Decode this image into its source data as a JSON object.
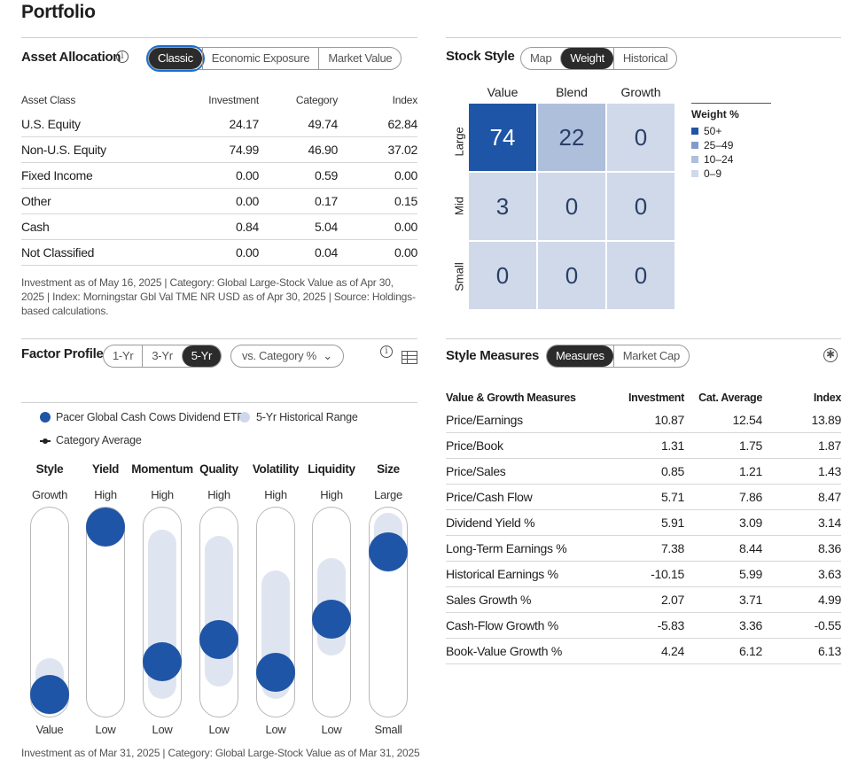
{
  "page_title": "Portfolio",
  "asset_allocation": {
    "title": "Asset Allocation",
    "tabs": [
      "Classic",
      "Economic Exposure",
      "Market Value"
    ],
    "active_tab": "Classic",
    "columns": [
      "Asset Class",
      "Investment",
      "Category",
      "Index"
    ],
    "rows": [
      {
        "name": "U.S. Equity",
        "investment": "24.17",
        "category": "49.74",
        "index": "62.84"
      },
      {
        "name": "Non-U.S. Equity",
        "investment": "74.99",
        "category": "46.90",
        "index": "37.02"
      },
      {
        "name": "Fixed Income",
        "investment": "0.00",
        "category": "0.59",
        "index": "0.00"
      },
      {
        "name": "Other",
        "investment": "0.00",
        "category": "0.17",
        "index": "0.15"
      },
      {
        "name": "Cash",
        "investment": "0.84",
        "category": "5.04",
        "index": "0.00"
      },
      {
        "name": "Not Classified",
        "investment": "0.00",
        "category": "0.04",
        "index": "0.00"
      }
    ],
    "note": "Investment as of May 16, 2025 | Category: Global Large-Stock Value as of Apr 30, 2025 | Index: Morningstar Gbl Val TME NR USD as of Apr 30, 2025 | Source: Holdings-based calculations."
  },
  "stock_style": {
    "title": "Stock Style",
    "tabs": [
      "Map",
      "Weight",
      "Historical"
    ],
    "active_tab": "Weight",
    "col_labels": [
      "Value",
      "Blend",
      "Growth"
    ],
    "row_labels": [
      "Large",
      "Mid",
      "Small"
    ],
    "grid": [
      [
        "74",
        "22",
        "0"
      ],
      [
        "3",
        "0",
        "0"
      ],
      [
        "0",
        "0",
        "0"
      ]
    ],
    "legend_title": "Weight %",
    "legend": [
      {
        "label": "50+",
        "color": "#1f55a6"
      },
      {
        "label": "25–49",
        "color": "#7f9ccc"
      },
      {
        "label": "10–24",
        "color": "#aebfdb"
      },
      {
        "label": "0–9",
        "color": "#cfd9ea"
      }
    ]
  },
  "factor_profile": {
    "title": "Factor Profile",
    "tabs": [
      "1-Yr",
      "3-Yr",
      "5-Yr"
    ],
    "active_tab": "5-Yr",
    "dropdown": "vs. Category %",
    "legend_fund": "Pacer Global Cash Cows Dividend ETF",
    "legend_range": "5-Yr Historical Range",
    "legend_category": "Category Average",
    "factors": [
      {
        "name": "Style",
        "top": "Growth",
        "bottom": "Value",
        "fund": 0.1,
        "range_low": 0.0,
        "range_high": 0.28
      },
      {
        "name": "Yield",
        "top": "High",
        "bottom": "Low",
        "fund": 0.92,
        "range_low": 0.85,
        "range_high": 0.99
      },
      {
        "name": "Momentum",
        "top": "High",
        "bottom": "Low",
        "fund": 0.26,
        "range_low": 0.08,
        "range_high": 0.91
      },
      {
        "name": "Quality",
        "top": "High",
        "bottom": "Low",
        "fund": 0.37,
        "range_low": 0.14,
        "range_high": 0.88
      },
      {
        "name": "Volatility",
        "top": "High",
        "bottom": "Low",
        "fund": 0.21,
        "range_low": 0.08,
        "range_high": 0.71
      },
      {
        "name": "Liquidity",
        "top": "High",
        "bottom": "Low",
        "fund": 0.47,
        "range_low": 0.29,
        "range_high": 0.77
      },
      {
        "name": "Size",
        "top": "Large",
        "bottom": "Small",
        "fund": 0.8,
        "range_low": 0.7,
        "range_high": 0.99
      }
    ],
    "note": "Investment as of Mar 31, 2025 | Category: Global Large-Stock Value as of Mar 31, 2025"
  },
  "style_measures": {
    "title": "Style Measures",
    "tabs": [
      "Measures",
      "Market Cap"
    ],
    "active_tab": "Measures",
    "columns": [
      "Value & Growth Measures",
      "Investment",
      "Cat. Average",
      "Index"
    ],
    "rows": [
      {
        "name": "Price/Earnings",
        "investment": "10.87",
        "cat": "12.54",
        "index": "13.89"
      },
      {
        "name": "Price/Book",
        "investment": "1.31",
        "cat": "1.75",
        "index": "1.87"
      },
      {
        "name": "Price/Sales",
        "investment": "0.85",
        "cat": "1.21",
        "index": "1.43"
      },
      {
        "name": "Price/Cash Flow",
        "investment": "5.71",
        "cat": "7.86",
        "index": "8.47"
      },
      {
        "name": "Dividend Yield %",
        "investment": "5.91",
        "cat": "3.09",
        "index": "3.14"
      },
      {
        "name": "Long-Term Earnings %",
        "investment": "7.38",
        "cat": "8.44",
        "index": "8.36"
      },
      {
        "name": "Historical Earnings %",
        "investment": "-10.15",
        "cat": "5.99",
        "index": "3.63"
      },
      {
        "name": "Sales Growth %",
        "investment": "2.07",
        "cat": "3.71",
        "index": "4.99"
      },
      {
        "name": "Cash-Flow Growth %",
        "investment": "-5.83",
        "cat": "3.36",
        "index": "-0.55"
      },
      {
        "name": "Book-Value Growth %",
        "investment": "4.24",
        "cat": "6.12",
        "index": "6.13"
      }
    ]
  }
}
